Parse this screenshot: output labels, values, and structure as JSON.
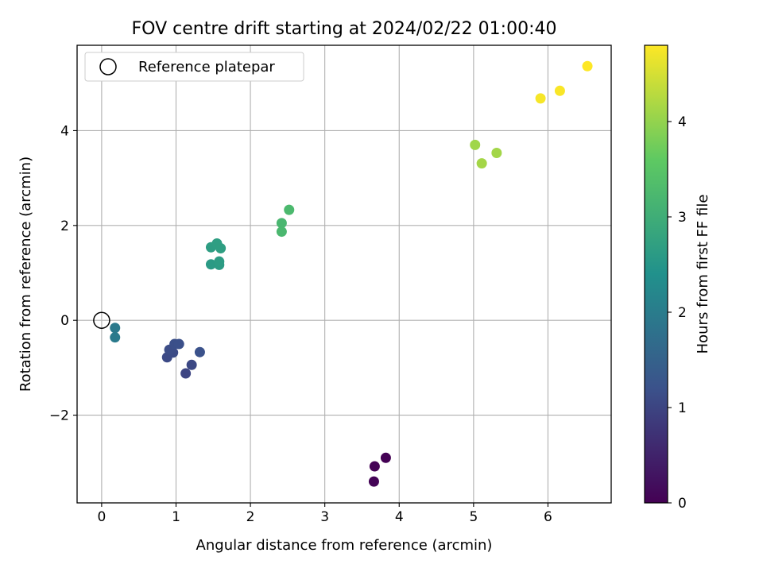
{
  "chart_data": {
    "type": "scatter",
    "title": "FOV centre drift starting at 2024/02/22 01:00:40",
    "xlabel": "Angular distance from reference (arcmin)",
    "ylabel": "Rotation from reference (arcmin)",
    "xlim": [
      -0.33,
      6.85
    ],
    "ylim": [
      -3.85,
      5.8
    ],
    "xticks": [
      0,
      1,
      2,
      3,
      4,
      5,
      6
    ],
    "yticks": [
      -2,
      0,
      2,
      4
    ],
    "grid": true,
    "legend": {
      "placement": "top-left",
      "label": "Reference platepar"
    },
    "reference_point": {
      "x": 0,
      "y": 0
    },
    "colormap": "viridis",
    "colorbar": {
      "label": "Hours from first FF file",
      "range": [
        0,
        4.8
      ],
      "ticks": [
        0,
        1,
        2,
        3,
        4
      ]
    },
    "points": [
      {
        "x": 3.82,
        "y": -2.9,
        "hours": 0.0
      },
      {
        "x": 3.67,
        "y": -3.08,
        "hours": 0.02
      },
      {
        "x": 3.66,
        "y": -3.4,
        "hours": 0.05
      },
      {
        "x": 1.13,
        "y": -1.12,
        "hours": 1.0
      },
      {
        "x": 1.21,
        "y": -0.94,
        "hours": 1.05
      },
      {
        "x": 0.88,
        "y": -0.78,
        "hours": 1.08
      },
      {
        "x": 0.96,
        "y": -0.68,
        "hours": 1.1
      },
      {
        "x": 0.91,
        "y": -0.62,
        "hours": 1.12
      },
      {
        "x": 0.98,
        "y": -0.5,
        "hours": 1.15
      },
      {
        "x": 1.04,
        "y": -0.5,
        "hours": 1.17
      },
      {
        "x": 1.32,
        "y": -0.67,
        "hours": 1.2
      },
      {
        "x": 0.18,
        "y": -0.16,
        "hours": 1.95
      },
      {
        "x": 0.18,
        "y": -0.36,
        "hours": 1.97
      },
      {
        "x": 1.47,
        "y": 1.18,
        "hours": 2.6
      },
      {
        "x": 1.58,
        "y": 1.17,
        "hours": 2.62
      },
      {
        "x": 1.58,
        "y": 1.24,
        "hours": 2.63
      },
      {
        "x": 1.47,
        "y": 1.54,
        "hours": 2.65
      },
      {
        "x": 1.55,
        "y": 1.62,
        "hours": 2.67
      },
      {
        "x": 1.6,
        "y": 1.52,
        "hours": 2.68
      },
      {
        "x": 2.42,
        "y": 2.05,
        "hours": 3.2
      },
      {
        "x": 2.42,
        "y": 1.87,
        "hours": 3.22
      },
      {
        "x": 2.52,
        "y": 2.33,
        "hours": 3.25
      },
      {
        "x": 5.02,
        "y": 3.7,
        "hours": 4.1
      },
      {
        "x": 5.31,
        "y": 3.53,
        "hours": 4.12
      },
      {
        "x": 5.11,
        "y": 3.31,
        "hours": 4.13
      },
      {
        "x": 5.9,
        "y": 4.68,
        "hours": 4.75
      },
      {
        "x": 6.16,
        "y": 4.84,
        "hours": 4.77
      },
      {
        "x": 6.53,
        "y": 5.36,
        "hours": 4.8
      }
    ]
  }
}
